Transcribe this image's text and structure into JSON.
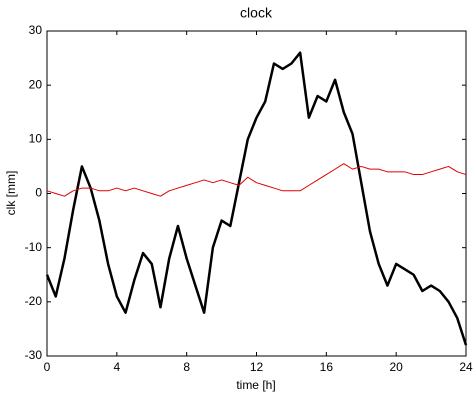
{
  "chart_data": {
    "type": "line",
    "title": "clock",
    "xlabel": "time [h]",
    "ylabel": "clk [mm]",
    "x": [
      0,
      0.5,
      1,
      1.5,
      2,
      2.5,
      3,
      3.5,
      4,
      4.5,
      5,
      5.5,
      6,
      6.5,
      7,
      7.5,
      8,
      8.5,
      9,
      9.5,
      10,
      10.5,
      11,
      11.5,
      12,
      12.5,
      13,
      13.5,
      14,
      14.5,
      15,
      15.5,
      16,
      16.5,
      17,
      17.5,
      18,
      18.5,
      19,
      19.5,
      20,
      20.5,
      21,
      21.5,
      22,
      22.5,
      23,
      23.5,
      24
    ],
    "series": [
      {
        "color": "#000000",
        "width": 2.5,
        "values": [
          -15,
          -19,
          -12,
          -3,
          5,
          1,
          -5,
          -13,
          -19,
          -22,
          -16,
          -11,
          -13,
          -21,
          -12,
          -6,
          -12,
          -17,
          -22,
          -10,
          -5,
          -6,
          2,
          10,
          14,
          17,
          24,
          23,
          24,
          26,
          14,
          18,
          17,
          21,
          15,
          11,
          2,
          -7,
          -13,
          -17,
          -13,
          -14,
          -15,
          -18,
          -17,
          -18,
          -20,
          -23,
          -28
        ]
      },
      {
        "color": "#e00000",
        "width": 1,
        "values": [
          0.5,
          0,
          -0.5,
          0.5,
          1,
          1,
          0.5,
          0.5,
          1,
          0.5,
          1,
          0.5,
          0,
          -0.5,
          0.5,
          1,
          1.5,
          2,
          2.5,
          2,
          2.5,
          2,
          1.5,
          3,
          2,
          1.5,
          1,
          0.5,
          0.5,
          0.5,
          1.5,
          2.5,
          3.5,
          4.5,
          5.5,
          4.5,
          5,
          4.5,
          4.5,
          4,
          4,
          4,
          3.5,
          3.5,
          4,
          4.5,
          5,
          4,
          3.5
        ]
      }
    ],
    "xlim": [
      0,
      24
    ],
    "xticks": [
      0,
      4,
      8,
      12,
      16,
      20,
      24
    ],
    "ylim": [
      -30,
      30
    ],
    "yticks": [
      -30,
      -20,
      -10,
      0,
      10,
      20,
      30
    ],
    "grid": false
  }
}
